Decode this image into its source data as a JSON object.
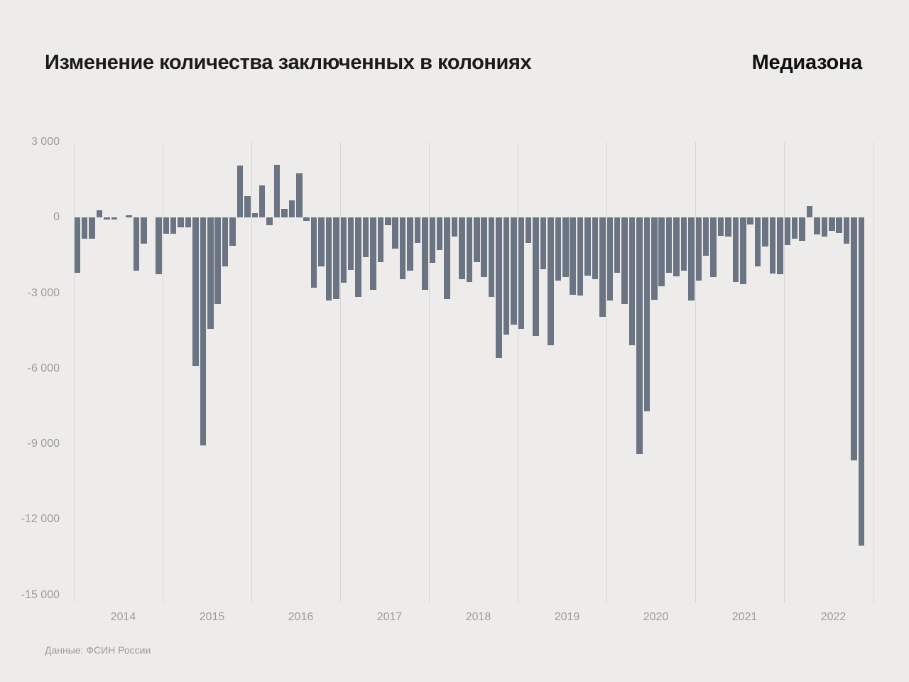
{
  "header": {
    "title": "Изменение количества заключенных в колониях",
    "logo": "Медиазона"
  },
  "footer": {
    "source": "Данные: ФСИН России"
  },
  "chart_data": {
    "type": "bar",
    "title": "Изменение количества заключенных в колониях",
    "xlabel": "",
    "ylabel": "",
    "ylim": [
      -15000,
      3000
    ],
    "grid": "vertical year boundary lines only",
    "legend": "none",
    "bar_color": "#6B7482",
    "y_tick_values": [
      3000,
      0,
      -3000,
      -6000,
      -9000,
      -12000,
      -15000
    ],
    "y_tick_labels": [
      "3 000",
      "0",
      "-3 000",
      "-6 000",
      "-9 000",
      "-12 000",
      "-15 000"
    ],
    "x_tick_labels": [
      "2014",
      "2015",
      "2016",
      "2017",
      "2018",
      "2019",
      "2020",
      "2021",
      "2022"
    ],
    "period": "monthly, January 2014 — November 2022",
    "series": [
      {
        "year": "2014",
        "values": [
          -2200,
          -850,
          -850,
          280,
          -90,
          -90,
          0,
          100,
          -2100,
          -1050,
          0,
          -2240
        ]
      },
      {
        "year": "2015",
        "values": [
          -650,
          -650,
          -380,
          -380,
          -5900,
          -9050,
          -4420,
          -3430,
          -1930,
          -1130,
          2070,
          860
        ]
      },
      {
        "year": "2016",
        "values": [
          180,
          1280,
          -290,
          2090,
          350,
          700,
          1750,
          -120,
          -2780,
          -1930,
          -3300,
          -3250
        ]
      },
      {
        "year": "2017",
        "values": [
          -2600,
          -2080,
          -3150,
          -1560,
          -2870,
          -1780,
          -310,
          -1230,
          -2450,
          -2120,
          -1000,
          -2870
        ]
      },
      {
        "year": "2018",
        "values": [
          -1790,
          -1280,
          -3250,
          -760,
          -2450,
          -2560,
          -1780,
          -2360,
          -3150,
          -5570,
          -4660,
          -4260
        ]
      },
      {
        "year": "2019",
        "values": [
          -4430,
          -1000,
          -4710,
          -2040,
          -5080,
          -2500,
          -2360,
          -3060,
          -3100,
          -2310,
          -2450,
          -3950
        ]
      },
      {
        "year": "2020",
        "values": [
          -3300,
          -2180,
          -3430,
          -5080,
          -9400,
          -7710,
          -3280,
          -2720,
          -2180,
          -2340,
          -2120,
          -3300
        ]
      },
      {
        "year": "2021",
        "values": [
          -2500,
          -1510,
          -2360,
          -720,
          -760,
          -2550,
          -2650,
          -270,
          -1950,
          -1150,
          -2220,
          -2240
        ]
      },
      {
        "year": "2022",
        "values": [
          -1080,
          -850,
          -920,
          470,
          -660,
          -750,
          -520,
          -610,
          -1030,
          -9660,
          -13050
        ]
      }
    ]
  },
  "colors": {
    "background": "#EDECEA",
    "bar": "#6B7482",
    "gridline": "#D7D6D4",
    "axis_text": "#9C9C9C",
    "title_text": "#1B1B1B"
  }
}
